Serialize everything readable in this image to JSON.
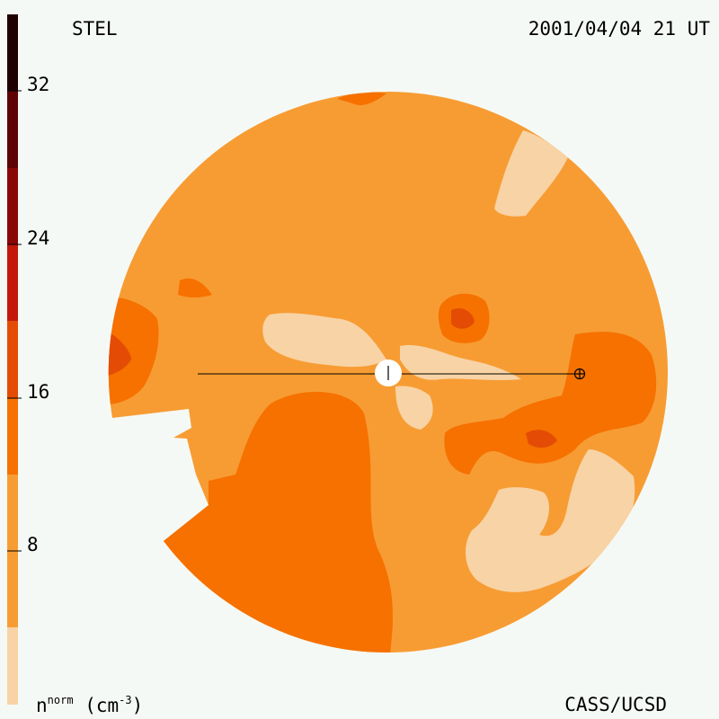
{
  "header": {
    "source": "STEL",
    "datetime": "2001/04/04 21 UT"
  },
  "footer": {
    "credit": "CASS/UCSD",
    "units": {
      "symbol": "n",
      "superscript": "norm",
      "unit_open": " (cm",
      "unit_superscript": "-3",
      "unit_close": ")"
    }
  },
  "colorbar": {
    "ticks": [
      "32",
      "24",
      "16",
      "8"
    ],
    "colors": [
      "#f8d3a5",
      "#f79c33",
      "#f67100",
      "#e44c05",
      "#c3180b",
      "#8a0708",
      "#5e0305",
      "#1f0000"
    ]
  },
  "map_colors": {
    "background_disk": "#f79c33",
    "light": "#f8d3a5",
    "mid": "#f67100",
    "dark": "#e44c05",
    "darker": "#c3180b",
    "sun": "#ffffff",
    "line": "#000000"
  },
  "icons": {
    "sun": "sun-disk-icon",
    "earth": "earth-symbol-icon"
  }
}
